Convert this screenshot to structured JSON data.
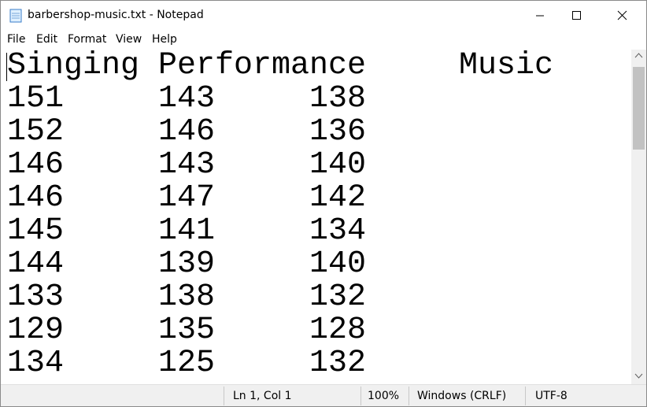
{
  "window": {
    "title": "barbershop-music.txt - Notepad"
  },
  "menu": [
    "File",
    "Edit",
    "Format",
    "View",
    "Help"
  ],
  "document": {
    "header": [
      "Singing",
      "Performance",
      "Music"
    ],
    "rows": [
      [
        151,
        143,
        138
      ],
      [
        152,
        146,
        136
      ],
      [
        146,
        143,
        140
      ],
      [
        146,
        147,
        142
      ],
      [
        145,
        141,
        134
      ],
      [
        144,
        139,
        140
      ],
      [
        133,
        138,
        132
      ],
      [
        129,
        135,
        128
      ],
      [
        134,
        125,
        132
      ]
    ]
  },
  "status": {
    "position": "Ln 1, Col 1",
    "zoom": "100%",
    "line_ending": "Windows (CRLF)",
    "encoding": "UTF-8"
  }
}
